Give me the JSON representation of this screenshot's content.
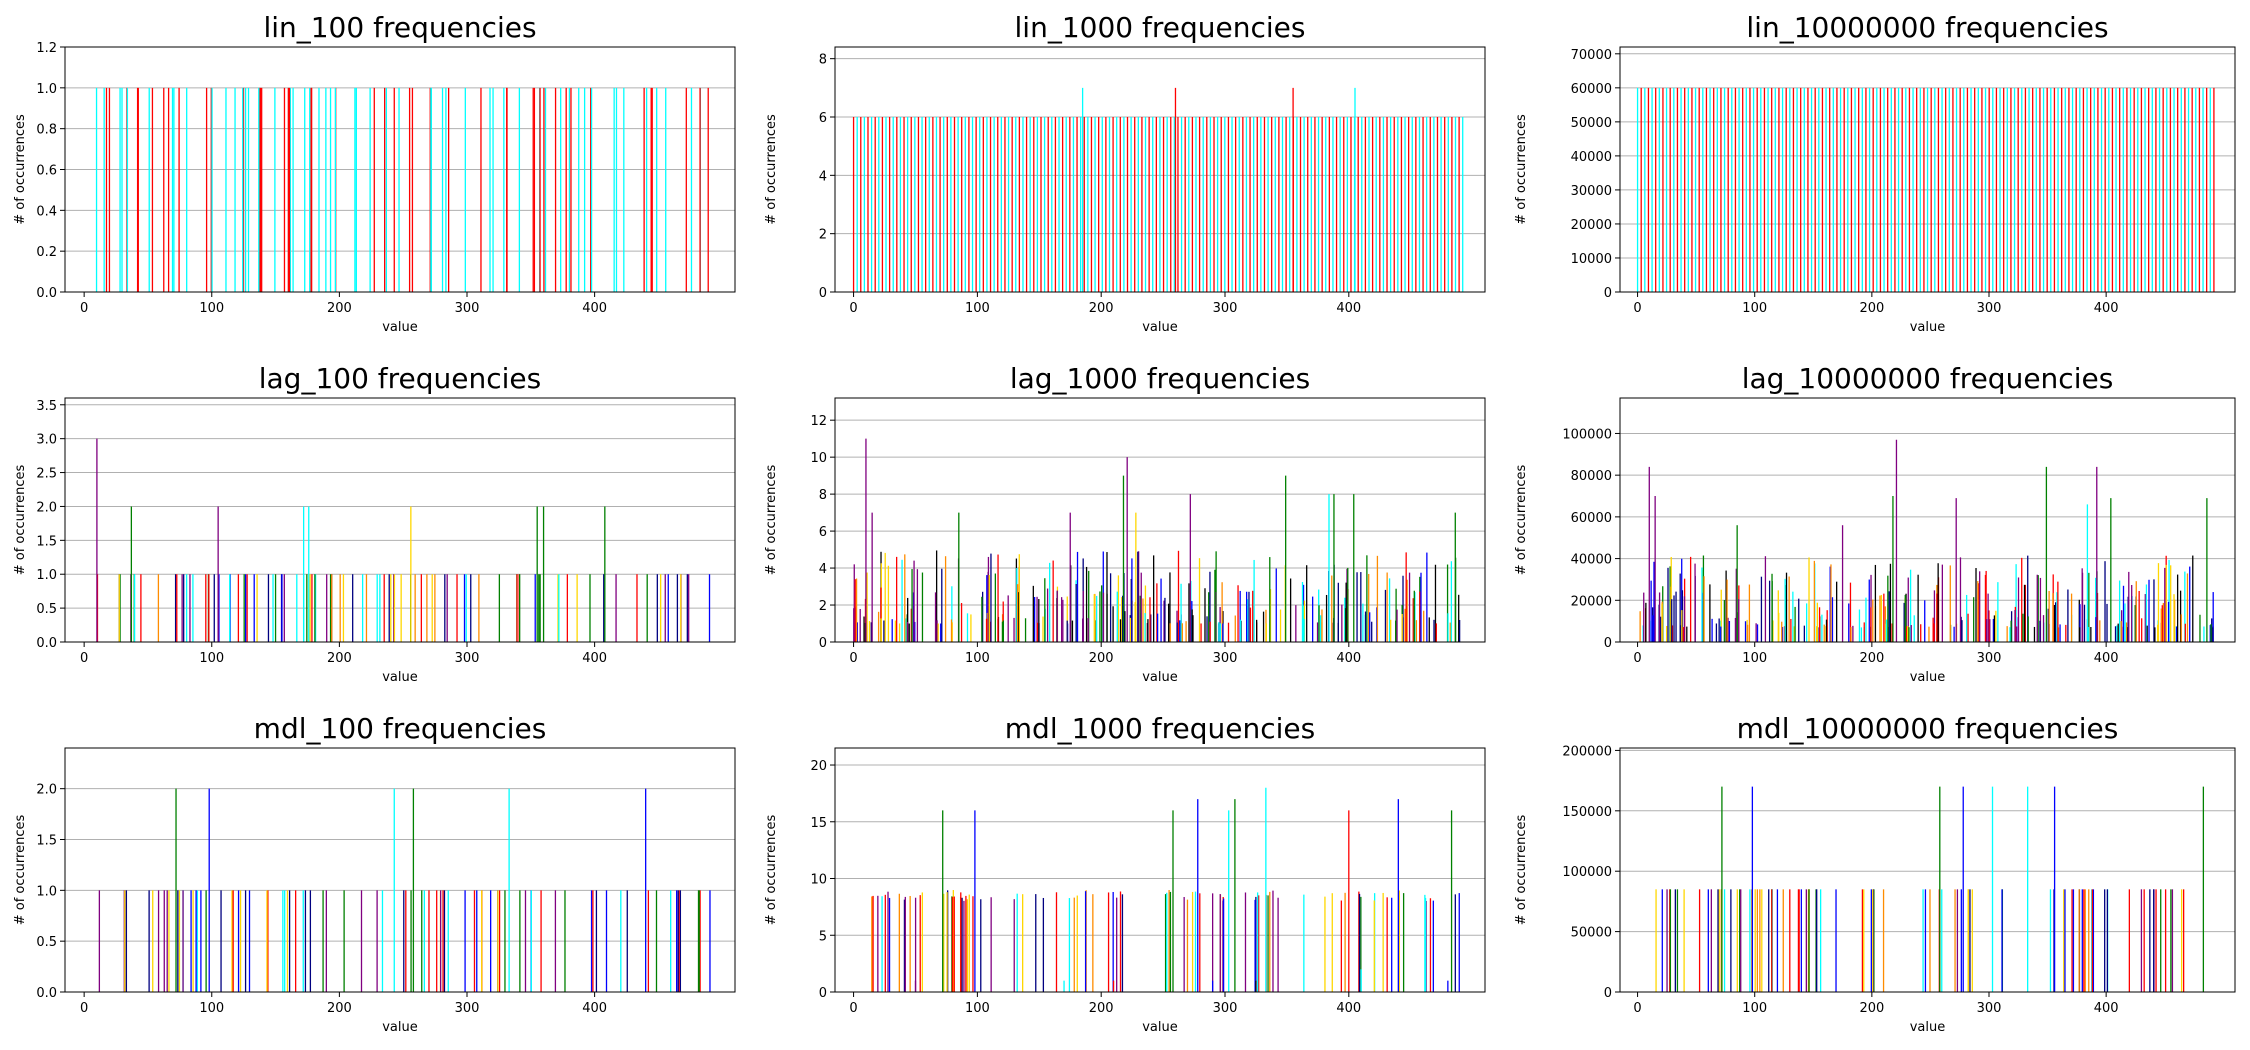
{
  "chart_data": [
    {
      "id": "lin_100",
      "type": "bar",
      "title": "lin_100 frequencies",
      "xlabel": "value",
      "ylabel": "# of occurrences",
      "xlim": [
        -15,
        510
      ],
      "ylim": [
        0,
        1.2
      ],
      "yticks": [
        0.0,
        0.2,
        0.4,
        0.6,
        0.8,
        1.0,
        1.2
      ],
      "ytick_labels": [
        "0.0",
        "0.2",
        "0.4",
        "0.6",
        "0.8",
        "1.0",
        "1.2"
      ],
      "xticks": [
        0,
        100,
        200,
        300,
        400
      ],
      "grid": "y",
      "pattern": "sparse",
      "base": 1.0,
      "count": 100,
      "colors": [
        "#00ffff",
        "#ff0000"
      ],
      "seed": 11,
      "spikes": []
    },
    {
      "id": "lin_1000",
      "type": "bar",
      "title": "lin_1000 frequencies",
      "xlabel": "value",
      "ylabel": "# of occurrences",
      "xlim": [
        -15,
        510
      ],
      "ylim": [
        0,
        8.4
      ],
      "yticks": [
        0,
        2,
        4,
        6,
        8
      ],
      "ytick_labels": [
        "0",
        "2",
        "4",
        "6",
        "8"
      ],
      "xticks": [
        0,
        100,
        200,
        300,
        400
      ],
      "grid": "y",
      "pattern": "uniform",
      "base": 6,
      "count": 170,
      "colors": [
        "#ff0000",
        "#00ffff"
      ],
      "seed": 12,
      "spikes": [
        [
          185,
          7,
          "#00ffff"
        ],
        [
          260,
          7,
          "#ff0000"
        ],
        [
          355,
          7,
          "#ff0000"
        ],
        [
          405,
          7,
          "#00ffff"
        ]
      ]
    },
    {
      "id": "lin_10000000",
      "type": "bar",
      "title": "lin_10000000 frequencies",
      "xlabel": "value",
      "ylabel": "# of occurrences",
      "xlim": [
        -15,
        510
      ],
      "ylim": [
        0,
        72000
      ],
      "yticks": [
        0,
        10000,
        20000,
        30000,
        40000,
        50000,
        60000,
        70000
      ],
      "ytick_labels": [
        "0",
        "10000",
        "20000",
        "30000",
        "40000",
        "50000",
        "60000",
        "70000"
      ],
      "xticks": [
        0,
        100,
        200,
        300,
        400
      ],
      "grid": "y",
      "pattern": "uniform",
      "base": 60000,
      "count": 160,
      "colors": [
        "#00ffff",
        "#ff0000"
      ],
      "seed": 13,
      "spikes": []
    },
    {
      "id": "lag_100",
      "type": "bar",
      "title": "lag_100 frequencies",
      "xlabel": "value",
      "ylabel": "# of occurrences",
      "xlim": [
        -15,
        510
      ],
      "ylim": [
        0,
        3.6
      ],
      "yticks": [
        0.0,
        0.5,
        1.0,
        1.5,
        2.0,
        2.5,
        3.0,
        3.5
      ],
      "ytick_labels": [
        "0.0",
        "0.5",
        "1.0",
        "1.5",
        "2.0",
        "2.5",
        "3.0",
        "3.5"
      ],
      "xticks": [
        0,
        100,
        200,
        300,
        400
      ],
      "grid": "y",
      "pattern": "sparse",
      "base": 1.0,
      "count": 100,
      "start": 10,
      "colors": [
        "#00ffff",
        "#ff0000",
        "#008000",
        "#0000ff",
        "#ffd700",
        "#800080",
        "#000080",
        "#ff8c00"
      ],
      "seed": 21,
      "spikes": [
        [
          10,
          3.0,
          "#800080"
        ],
        [
          37,
          2.0,
          "#008000"
        ],
        [
          105,
          2.0,
          "#800080"
        ],
        [
          172,
          2.0,
          "#00ffff"
        ],
        [
          176,
          2.0,
          "#00ffff"
        ],
        [
          256,
          2.0,
          "#ffd700"
        ],
        [
          355,
          2.0,
          "#008000"
        ],
        [
          360,
          2.0,
          "#008000"
        ],
        [
          408,
          2.0,
          "#008000"
        ]
      ]
    },
    {
      "id": "lag_1000",
      "type": "bar",
      "title": "lag_1000 frequencies",
      "xlabel": "value",
      "ylabel": "# of occurrences",
      "xlim": [
        -15,
        510
      ],
      "ylim": [
        0,
        13.2
      ],
      "yticks": [
        0,
        2,
        4,
        6,
        8,
        10,
        12
      ],
      "ytick_labels": [
        "0",
        "2",
        "4",
        "6",
        "8",
        "10",
        "12"
      ],
      "xticks": [
        0,
        100,
        200,
        300,
        400
      ],
      "grid": "y",
      "pattern": "random",
      "count": 300,
      "minv": 1,
      "maxv": 5,
      "colors": [
        "#800080",
        "#008000",
        "#ff0000",
        "#0000ff",
        "#00ffff",
        "#ffd700",
        "#000080",
        "#ff8c00",
        "#000000"
      ],
      "seed": 22,
      "spikes": [
        [
          10,
          11,
          "#800080"
        ],
        [
          15,
          7,
          "#800080"
        ],
        [
          85,
          7,
          "#008000"
        ],
        [
          175,
          7,
          "#800080"
        ],
        [
          218,
          9,
          "#008000"
        ],
        [
          221,
          10,
          "#800080"
        ],
        [
          228,
          7,
          "#ffd700"
        ],
        [
          272,
          8,
          "#800080"
        ],
        [
          349,
          9,
          "#008000"
        ],
        [
          384,
          8,
          "#00ffff"
        ],
        [
          388,
          8,
          "#008000"
        ],
        [
          404,
          8,
          "#008000"
        ],
        [
          486,
          7,
          "#008000"
        ]
      ]
    },
    {
      "id": "lag_10000000",
      "type": "bar",
      "title": "lag_10000000 frequencies",
      "xlabel": "value",
      "ylabel": "# of occurrences",
      "xlim": [
        -15,
        510
      ],
      "ylim": [
        0,
        117000
      ],
      "yticks": [
        0,
        20000,
        40000,
        60000,
        80000,
        100000
      ],
      "ytick_labels": [
        "0",
        "20000",
        "40000",
        "60000",
        "80000",
        "100000"
      ],
      "xticks": [
        0,
        100,
        200,
        300,
        400
      ],
      "grid": "y",
      "pattern": "random",
      "count": 300,
      "minv": 7000,
      "maxv": 42000,
      "colors": [
        "#800080",
        "#008000",
        "#ff0000",
        "#0000ff",
        "#00ffff",
        "#ffd700",
        "#000080",
        "#ff8c00",
        "#000000"
      ],
      "seed": 23,
      "spikes": [
        [
          10,
          84000,
          "#800080"
        ],
        [
          15,
          70000,
          "#800080"
        ],
        [
          85,
          56000,
          "#008000"
        ],
        [
          175,
          56000,
          "#800080"
        ],
        [
          218,
          70000,
          "#008000"
        ],
        [
          221,
          97000,
          "#800080"
        ],
        [
          272,
          69000,
          "#800080"
        ],
        [
          349,
          84000,
          "#008000"
        ],
        [
          384,
          66000,
          "#00ffff"
        ],
        [
          392,
          84000,
          "#800080"
        ],
        [
          404,
          69000,
          "#008000"
        ],
        [
          486,
          69000,
          "#008000"
        ]
      ]
    },
    {
      "id": "mdl_100",
      "type": "bar",
      "title": "mdl_100 frequencies",
      "xlabel": "value",
      "ylabel": "# of occurrences",
      "xlim": [
        -15,
        510
      ],
      "ylim": [
        0,
        2.4
      ],
      "yticks": [
        0.0,
        0.5,
        1.0,
        1.5,
        2.0
      ],
      "ytick_labels": [
        "0.0",
        "0.5",
        "1.0",
        "1.5",
        "2.0"
      ],
      "xticks": [
        0,
        100,
        200,
        300,
        400
      ],
      "grid": "y",
      "pattern": "sparse",
      "base": 1.0,
      "count": 90,
      "start": 10,
      "colors": [
        "#0000ff",
        "#ffd700",
        "#ff0000",
        "#008000",
        "#00ffff",
        "#800080",
        "#000080"
      ],
      "seed": 31,
      "spikes": [
        [
          72,
          2.0,
          "#008000"
        ],
        [
          98,
          2.0,
          "#0000ff"
        ],
        [
          243,
          2.0,
          "#00ffff"
        ],
        [
          258,
          2.0,
          "#008000"
        ],
        [
          333,
          2.0,
          "#00ffff"
        ],
        [
          440,
          2.0,
          "#0000ff"
        ]
      ]
    },
    {
      "id": "mdl_1000",
      "type": "bar",
      "title": "mdl_1000 frequencies",
      "xlabel": "value",
      "ylabel": "# of occurrences",
      "xlim": [
        -15,
        510
      ],
      "ylim": [
        0,
        21.5
      ],
      "yticks": [
        0,
        5,
        10,
        15,
        20
      ],
      "ytick_labels": [
        "0",
        "5",
        "10",
        "15",
        "20"
      ],
      "xticks": [
        0,
        100,
        200,
        300,
        400
      ],
      "grid": "y",
      "pattern": "sparse",
      "base": 8.5,
      "count": 95,
      "start": 10,
      "jitter": 1.0,
      "colors": [
        "#0000ff",
        "#ffd700",
        "#ff0000",
        "#008000",
        "#00ffff",
        "#800080",
        "#000080",
        "#ff8c00"
      ],
      "seed": 32,
      "spikes": [
        [
          72,
          16,
          "#008000"
        ],
        [
          98,
          16,
          "#0000ff"
        ],
        [
          258,
          16,
          "#008000"
        ],
        [
          278,
          17,
          "#0000ff"
        ],
        [
          303,
          16,
          "#00ffff"
        ],
        [
          308,
          17,
          "#008000"
        ],
        [
          333,
          18,
          "#00ffff"
        ],
        [
          400,
          16,
          "#ff0000"
        ],
        [
          440,
          17,
          "#0000ff"
        ],
        [
          483,
          16,
          "#008000"
        ]
      ],
      "tiny": [
        [
          50,
          1,
          "#800080"
        ],
        [
          170,
          1,
          "#00ffff"
        ],
        [
          210,
          1,
          "#ff0000"
        ],
        [
          290,
          1,
          "#0000ff"
        ],
        [
          325,
          1,
          "#000000"
        ],
        [
          410,
          2,
          "#00ffff"
        ],
        [
          480,
          1,
          "#0000ff"
        ]
      ]
    },
    {
      "id": "mdl_10000000",
      "type": "bar",
      "title": "mdl_10000000 frequencies",
      "xlabel": "value",
      "ylabel": "# of occurrences",
      "xlim": [
        -15,
        510
      ],
      "ylim": [
        0,
        202000
      ],
      "yticks": [
        0,
        50000,
        100000,
        150000,
        200000
      ],
      "ytick_labels": [
        "0",
        "50000",
        "100000",
        "150000",
        "200000"
      ],
      "xticks": [
        0,
        100,
        200,
        300,
        400
      ],
      "grid": "y",
      "pattern": "sparse",
      "base": 85000,
      "count": 95,
      "start": 10,
      "colors": [
        "#0000ff",
        "#ffd700",
        "#ff0000",
        "#008000",
        "#00ffff",
        "#800080",
        "#000080",
        "#ff8c00"
      ],
      "seed": 33,
      "spikes": [
        [
          72,
          170000,
          "#008000"
        ],
        [
          98,
          170000,
          "#0000ff"
        ],
        [
          258,
          170000,
          "#008000"
        ],
        [
          278,
          170000,
          "#0000ff"
        ],
        [
          303,
          170000,
          "#00ffff"
        ],
        [
          333,
          170000,
          "#00ffff"
        ],
        [
          356,
          170000,
          "#0000ff"
        ],
        [
          483,
          170000,
          "#008000"
        ]
      ]
    }
  ]
}
